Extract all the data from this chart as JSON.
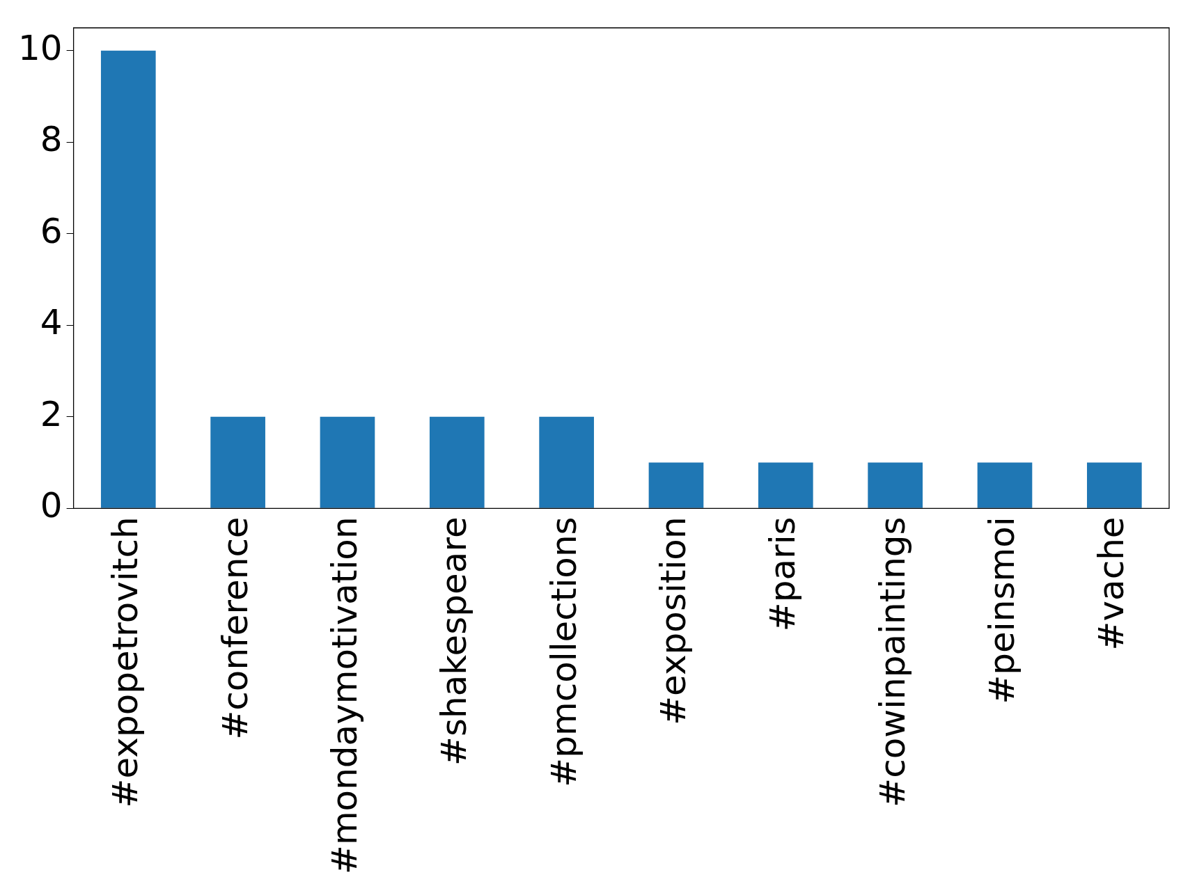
{
  "chart_data": {
    "type": "bar",
    "categories": [
      "#expopetrovitch",
      "#conference",
      "#mondaymotivation",
      "#shakespeare",
      "#pmcollections",
      "#exposition",
      "#paris",
      "#cowinpaintings",
      "#peinsmoi",
      "#vache"
    ],
    "values": [
      10,
      2,
      2,
      2,
      2,
      1,
      1,
      1,
      1,
      1
    ],
    "color": "#1f77b4",
    "ylim": [
      0,
      10.5
    ],
    "yticks": [
      0,
      2,
      4,
      6,
      8,
      10
    ],
    "grid": false,
    "legend": false
  }
}
